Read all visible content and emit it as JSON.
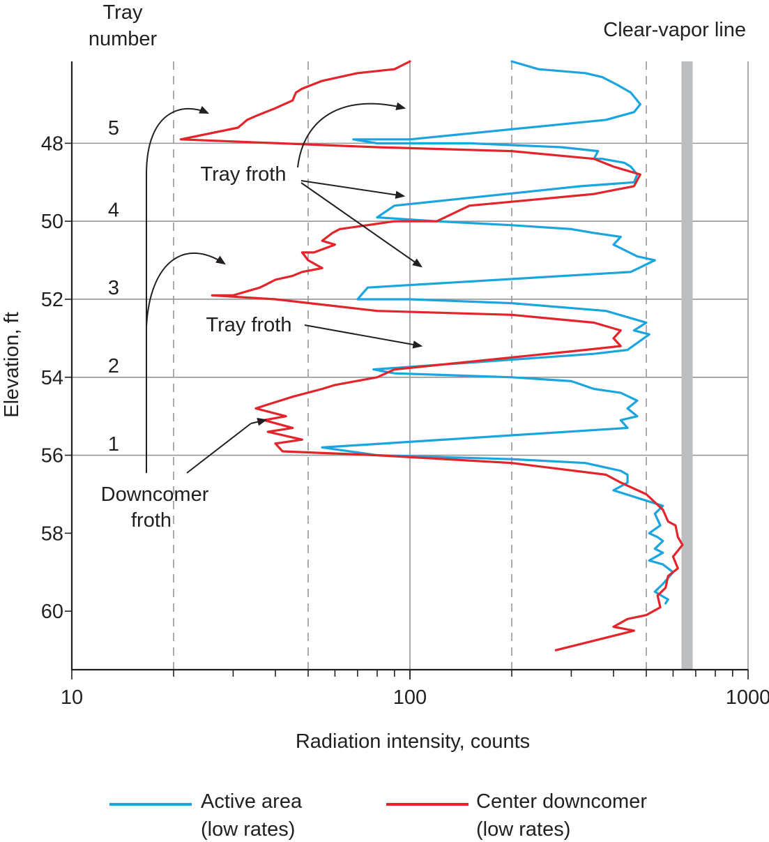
{
  "chart_data": {
    "type": "line",
    "x_scale": "log",
    "xlim": [
      10,
      1000
    ],
    "ylim": [
      61.5,
      45.9
    ],
    "xlabel": "Radiation intensity, counts",
    "ylabel": "Elevation, ft",
    "x_ticks_major": [
      10,
      100,
      1000
    ],
    "x_tick_labels": [
      "10",
      "100",
      "1000"
    ],
    "y_ticks": [
      48,
      50,
      52,
      54,
      56,
      58,
      60
    ],
    "y_tick_labels": [
      "48",
      "50",
      "52",
      "54",
      "56",
      "58",
      "60"
    ],
    "grid_solid_y": [
      48,
      50,
      52,
      54,
      56
    ],
    "grid_solid_x": [
      100,
      1000
    ],
    "grid_dashed_x": [
      20,
      50,
      200,
      500
    ],
    "clear_vapor_line": {
      "x": 660,
      "label": "Clear-vapor line"
    },
    "tray_header": [
      "Tray",
      "number"
    ],
    "trays": [
      {
        "label": "5",
        "y": 47.6
      },
      {
        "label": "4",
        "y": 49.7
      },
      {
        "label": "3",
        "y": 51.7
      },
      {
        "label": "2",
        "y": 53.7
      },
      {
        "label": "1",
        "y": 55.7
      }
    ],
    "annotations": {
      "tray_froth_1": "Tray froth",
      "tray_froth_2": "Tray froth",
      "downcomer_froth": [
        "Downcomer",
        "froth"
      ]
    },
    "colors": {
      "active": "#1aa5df",
      "downcomer": "#e3242b",
      "vapor": "#bcbec0",
      "grid": "#939598"
    },
    "legend": [
      {
        "label": [
          "Active area",
          "(low rates)"
        ],
        "color": "#1aa5df"
      },
      {
        "label": [
          "Center downcomer",
          "(low rates)"
        ],
        "color": "#e3242b"
      }
    ],
    "series": [
      {
        "name": "Active area (low rates)",
        "color": "#1aa5df",
        "points": [
          [
            200,
            45.9
          ],
          [
            240,
            46.1
          ],
          [
            330,
            46.2
          ],
          [
            370,
            46.3
          ],
          [
            410,
            46.5
          ],
          [
            450,
            46.7
          ],
          [
            480,
            47.0
          ],
          [
            460,
            47.2
          ],
          [
            380,
            47.4
          ],
          [
            100,
            47.9
          ],
          [
            68,
            47.9
          ],
          [
            80,
            48.0
          ],
          [
            150,
            48.0
          ],
          [
            280,
            48.1
          ],
          [
            360,
            48.2
          ],
          [
            350,
            48.4
          ],
          [
            370,
            48.4
          ],
          [
            430,
            48.5
          ],
          [
            450,
            48.6
          ],
          [
            470,
            48.8
          ],
          [
            460,
            49.0
          ],
          [
            320,
            49.1
          ],
          [
            90,
            49.6
          ],
          [
            80,
            49.9
          ],
          [
            120,
            50.0
          ],
          [
            200,
            50.1
          ],
          [
            300,
            50.2
          ],
          [
            350,
            50.3
          ],
          [
            420,
            50.4
          ],
          [
            400,
            50.6
          ],
          [
            470,
            50.9
          ],
          [
            530,
            51.0
          ],
          [
            450,
            51.3
          ],
          [
            75,
            51.7
          ],
          [
            70,
            52.0
          ],
          [
            100,
            52.0
          ],
          [
            200,
            52.1
          ],
          [
            380,
            52.3
          ],
          [
            500,
            52.6
          ],
          [
            460,
            52.8
          ],
          [
            510,
            52.9
          ],
          [
            440,
            53.3
          ],
          [
            350,
            53.4
          ],
          [
            78,
            53.8
          ],
          [
            90,
            53.9
          ],
          [
            200,
            54.0
          ],
          [
            300,
            54.1
          ],
          [
            350,
            54.3
          ],
          [
            420,
            54.4
          ],
          [
            470,
            54.6
          ],
          [
            440,
            54.8
          ],
          [
            470,
            55.0
          ],
          [
            420,
            55.1
          ],
          [
            440,
            55.3
          ],
          [
            55,
            55.8
          ],
          [
            80,
            56.0
          ],
          [
            200,
            56.1
          ],
          [
            330,
            56.2
          ],
          [
            420,
            56.4
          ],
          [
            440,
            56.5
          ],
          [
            440,
            56.7
          ],
          [
            400,
            56.9
          ],
          [
            560,
            57.3
          ],
          [
            530,
            57.5
          ],
          [
            550,
            57.8
          ],
          [
            510,
            58.0
          ],
          [
            540,
            58.1
          ],
          [
            560,
            58.2
          ],
          [
            530,
            58.4
          ],
          [
            560,
            58.5
          ],
          [
            510,
            58.7
          ],
          [
            560,
            58.8
          ],
          [
            600,
            59.0
          ],
          [
            560,
            59.3
          ],
          [
            530,
            59.5
          ],
          [
            580,
            59.7
          ],
          [
            570,
            59.8
          ]
        ]
      },
      {
        "name": "Center downcomer (low rates)",
        "color": "#e3242b",
        "points": [
          [
            100,
            45.9
          ],
          [
            90,
            46.1
          ],
          [
            70,
            46.2
          ],
          [
            55,
            46.4
          ],
          [
            48,
            46.6
          ],
          [
            46,
            46.7
          ],
          [
            45,
            46.9
          ],
          [
            40,
            47.1
          ],
          [
            35,
            47.3
          ],
          [
            33,
            47.4
          ],
          [
            32,
            47.5
          ],
          [
            31,
            47.6
          ],
          [
            21,
            47.9
          ],
          [
            80,
            48.1
          ],
          [
            200,
            48.2
          ],
          [
            350,
            48.4
          ],
          [
            400,
            48.6
          ],
          [
            480,
            48.8
          ],
          [
            460,
            49.1
          ],
          [
            350,
            49.3
          ],
          [
            200,
            49.5
          ],
          [
            150,
            49.6
          ],
          [
            120,
            50.0
          ],
          [
            90,
            50.0
          ],
          [
            62,
            50.2
          ],
          [
            59,
            50.3
          ],
          [
            55,
            50.5
          ],
          [
            60,
            50.6
          ],
          [
            52,
            50.8
          ],
          [
            48,
            50.8
          ],
          [
            50,
            51.0
          ],
          [
            55,
            51.2
          ],
          [
            48,
            51.3
          ],
          [
            45,
            51.4
          ],
          [
            40,
            51.5
          ],
          [
            38,
            51.6
          ],
          [
            36,
            51.7
          ],
          [
            30,
            51.9
          ],
          [
            26,
            51.9
          ],
          [
            40,
            52.0
          ],
          [
            80,
            52.3
          ],
          [
            200,
            52.4
          ],
          [
            350,
            52.6
          ],
          [
            420,
            52.8
          ],
          [
            400,
            53.0
          ],
          [
            420,
            53.2
          ],
          [
            330,
            53.3
          ],
          [
            90,
            53.8
          ],
          [
            80,
            54.0
          ],
          [
            60,
            54.2
          ],
          [
            55,
            54.3
          ],
          [
            45,
            54.5
          ],
          [
            38,
            54.7
          ],
          [
            35,
            54.8
          ],
          [
            43,
            55.0
          ],
          [
            37,
            55.1
          ],
          [
            45,
            55.3
          ],
          [
            38,
            55.4
          ],
          [
            48,
            55.6
          ],
          [
            40,
            55.7
          ],
          [
            42,
            55.9
          ],
          [
            80,
            56.0
          ],
          [
            200,
            56.2
          ],
          [
            380,
            56.5
          ],
          [
            420,
            56.7
          ],
          [
            500,
            57.0
          ],
          [
            560,
            57.4
          ],
          [
            580,
            57.7
          ],
          [
            610,
            57.8
          ],
          [
            620,
            58.1
          ],
          [
            640,
            58.3
          ],
          [
            600,
            58.6
          ],
          [
            620,
            58.9
          ],
          [
            580,
            59.1
          ],
          [
            570,
            59.4
          ],
          [
            540,
            59.6
          ],
          [
            550,
            59.9
          ],
          [
            500,
            60.1
          ],
          [
            440,
            60.2
          ],
          [
            400,
            60.4
          ],
          [
            460,
            60.5
          ],
          [
            270,
            61.0
          ]
        ]
      }
    ]
  }
}
